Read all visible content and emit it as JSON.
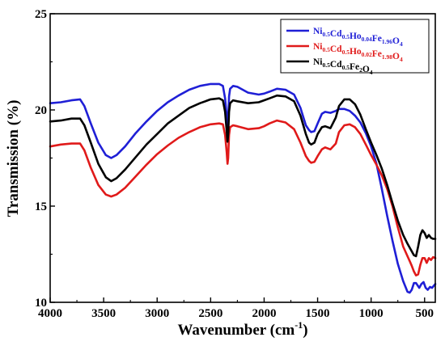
{
  "chart_data": {
    "type": "line",
    "title": "",
    "xlabel_main": "Wavenumber (cm",
    "xlabel_sup": "-1",
    "xlabel_close": ")",
    "ylabel": "Transmission (%)",
    "xlim": [
      4000,
      400
    ],
    "ylim": [
      10,
      25
    ],
    "x_reversed": true,
    "x_ticks": [
      4000,
      3500,
      3000,
      2500,
      2000,
      1500,
      1000,
      500
    ],
    "y_ticks": [
      10,
      15,
      20,
      25
    ],
    "grid": false,
    "legend_position": "top-right",
    "series": [
      {
        "legend": [
          {
            "t": "Ni",
            "s": "0.5"
          },
          {
            "t": "Cd",
            "s": "0.5"
          },
          {
            "t": "Ho",
            "s": "0.04"
          },
          {
            "t": "Fe",
            "s": "1.96"
          },
          {
            "t": "O",
            "s": "4"
          }
        ],
        "color": "#1f1fd6",
        "points": [
          [
            4000,
            20.35
          ],
          [
            3900,
            20.4
          ],
          [
            3800,
            20.5
          ],
          [
            3720,
            20.55
          ],
          [
            3680,
            20.2
          ],
          [
            3620,
            19.3
          ],
          [
            3550,
            18.3
          ],
          [
            3480,
            17.65
          ],
          [
            3430,
            17.5
          ],
          [
            3380,
            17.65
          ],
          [
            3300,
            18.1
          ],
          [
            3200,
            18.8
          ],
          [
            3100,
            19.4
          ],
          [
            3000,
            19.95
          ],
          [
            2900,
            20.4
          ],
          [
            2800,
            20.75
          ],
          [
            2700,
            21.05
          ],
          [
            2600,
            21.25
          ],
          [
            2500,
            21.35
          ],
          [
            2420,
            21.35
          ],
          [
            2385,
            21.25
          ],
          [
            2365,
            20.6
          ],
          [
            2350,
            19.7
          ],
          [
            2342,
            19.1
          ],
          [
            2336,
            19.45
          ],
          [
            2328,
            20.7
          ],
          [
            2318,
            21.1
          ],
          [
            2290,
            21.25
          ],
          [
            2250,
            21.2
          ],
          [
            2150,
            20.9
          ],
          [
            2050,
            20.8
          ],
          [
            2000,
            20.85
          ],
          [
            1950,
            20.95
          ],
          [
            1880,
            21.1
          ],
          [
            1800,
            21.05
          ],
          [
            1720,
            20.8
          ],
          [
            1660,
            20.1
          ],
          [
            1610,
            19.2
          ],
          [
            1580,
            18.95
          ],
          [
            1560,
            18.85
          ],
          [
            1530,
            18.9
          ],
          [
            1500,
            19.3
          ],
          [
            1460,
            19.8
          ],
          [
            1430,
            19.9
          ],
          [
            1380,
            19.85
          ],
          [
            1330,
            19.95
          ],
          [
            1300,
            20.05
          ],
          [
            1250,
            20.05
          ],
          [
            1200,
            19.95
          ],
          [
            1150,
            19.7
          ],
          [
            1100,
            19.35
          ],
          [
            1050,
            18.8
          ],
          [
            1000,
            18.1
          ],
          [
            950,
            17.2
          ],
          [
            900,
            15.9
          ],
          [
            850,
            14.5
          ],
          [
            800,
            13.2
          ],
          [
            750,
            12.0
          ],
          [
            700,
            11.1
          ],
          [
            660,
            10.55
          ],
          [
            640,
            10.5
          ],
          [
            620,
            10.65
          ],
          [
            600,
            11.0
          ],
          [
            580,
            11.0
          ],
          [
            550,
            10.75
          ],
          [
            530,
            10.95
          ],
          [
            510,
            11.05
          ],
          [
            490,
            10.75
          ],
          [
            470,
            10.65
          ],
          [
            450,
            10.8
          ],
          [
            430,
            10.75
          ],
          [
            400,
            10.95
          ]
        ]
      },
      {
        "legend": [
          {
            "t": "Ni",
            "s": "0.5"
          },
          {
            "t": "Cd",
            "s": "0.5"
          },
          {
            "t": "Ho",
            "s": "0.02"
          },
          {
            "t": "Fe",
            "s": "1.98"
          },
          {
            "t": "O",
            "s": "4"
          }
        ],
        "color": "#e01a1a",
        "points": [
          [
            4000,
            18.1
          ],
          [
            3900,
            18.2
          ],
          [
            3800,
            18.25
          ],
          [
            3720,
            18.25
          ],
          [
            3680,
            17.9
          ],
          [
            3620,
            17.0
          ],
          [
            3550,
            16.1
          ],
          [
            3480,
            15.6
          ],
          [
            3430,
            15.5
          ],
          [
            3380,
            15.6
          ],
          [
            3300,
            15.95
          ],
          [
            3200,
            16.55
          ],
          [
            3100,
            17.15
          ],
          [
            3000,
            17.7
          ],
          [
            2900,
            18.15
          ],
          [
            2800,
            18.55
          ],
          [
            2700,
            18.85
          ],
          [
            2600,
            19.1
          ],
          [
            2500,
            19.25
          ],
          [
            2420,
            19.3
          ],
          [
            2385,
            19.25
          ],
          [
            2365,
            18.7
          ],
          [
            2350,
            17.8
          ],
          [
            2342,
            17.2
          ],
          [
            2336,
            17.5
          ],
          [
            2328,
            18.7
          ],
          [
            2318,
            19.1
          ],
          [
            2290,
            19.2
          ],
          [
            2250,
            19.15
          ],
          [
            2150,
            19.0
          ],
          [
            2050,
            19.05
          ],
          [
            2000,
            19.15
          ],
          [
            1950,
            19.3
          ],
          [
            1880,
            19.45
          ],
          [
            1800,
            19.35
          ],
          [
            1720,
            19.0
          ],
          [
            1660,
            18.3
          ],
          [
            1610,
            17.6
          ],
          [
            1580,
            17.35
          ],
          [
            1560,
            17.25
          ],
          [
            1530,
            17.3
          ],
          [
            1500,
            17.6
          ],
          [
            1460,
            17.95
          ],
          [
            1430,
            18.05
          ],
          [
            1380,
            17.95
          ],
          [
            1330,
            18.25
          ],
          [
            1300,
            18.85
          ],
          [
            1250,
            19.2
          ],
          [
            1200,
            19.25
          ],
          [
            1150,
            19.1
          ],
          [
            1100,
            18.75
          ],
          [
            1050,
            18.2
          ],
          [
            1000,
            17.65
          ],
          [
            950,
            17.15
          ],
          [
            900,
            16.6
          ],
          [
            850,
            15.9
          ],
          [
            800,
            15.0
          ],
          [
            750,
            13.9
          ],
          [
            700,
            12.9
          ],
          [
            660,
            12.4
          ],
          [
            640,
            12.15
          ],
          [
            620,
            11.9
          ],
          [
            600,
            11.6
          ],
          [
            580,
            11.4
          ],
          [
            560,
            11.45
          ],
          [
            540,
            11.95
          ],
          [
            520,
            12.3
          ],
          [
            500,
            12.3
          ],
          [
            480,
            12.05
          ],
          [
            460,
            12.3
          ],
          [
            440,
            12.2
          ],
          [
            420,
            12.35
          ],
          [
            400,
            12.3
          ]
        ]
      },
      {
        "legend": [
          {
            "t": "Ni",
            "s": "0.5"
          },
          {
            "t": "Cd",
            "s": "0.5"
          },
          {
            "t": "Fe",
            "s": "2"
          },
          {
            "t": "O",
            "s": "4"
          }
        ],
        "color": "#000000",
        "points": [
          [
            4000,
            19.4
          ],
          [
            3900,
            19.45
          ],
          [
            3800,
            19.55
          ],
          [
            3720,
            19.55
          ],
          [
            3680,
            19.2
          ],
          [
            3620,
            18.3
          ],
          [
            3550,
            17.2
          ],
          [
            3480,
            16.5
          ],
          [
            3430,
            16.3
          ],
          [
            3380,
            16.45
          ],
          [
            3300,
            16.9
          ],
          [
            3200,
            17.55
          ],
          [
            3100,
            18.2
          ],
          [
            3000,
            18.75
          ],
          [
            2900,
            19.3
          ],
          [
            2800,
            19.7
          ],
          [
            2700,
            20.1
          ],
          [
            2600,
            20.35
          ],
          [
            2500,
            20.55
          ],
          [
            2420,
            20.6
          ],
          [
            2385,
            20.5
          ],
          [
            2365,
            19.9
          ],
          [
            2350,
            18.9
          ],
          [
            2342,
            18.35
          ],
          [
            2336,
            18.7
          ],
          [
            2328,
            19.9
          ],
          [
            2318,
            20.35
          ],
          [
            2290,
            20.5
          ],
          [
            2250,
            20.45
          ],
          [
            2150,
            20.35
          ],
          [
            2050,
            20.4
          ],
          [
            2000,
            20.5
          ],
          [
            1950,
            20.6
          ],
          [
            1880,
            20.75
          ],
          [
            1800,
            20.7
          ],
          [
            1720,
            20.45
          ],
          [
            1660,
            19.7
          ],
          [
            1610,
            18.75
          ],
          [
            1580,
            18.3
          ],
          [
            1560,
            18.2
          ],
          [
            1530,
            18.3
          ],
          [
            1500,
            18.75
          ],
          [
            1460,
            19.1
          ],
          [
            1430,
            19.15
          ],
          [
            1380,
            19.05
          ],
          [
            1330,
            19.6
          ],
          [
            1300,
            20.2
          ],
          [
            1250,
            20.55
          ],
          [
            1200,
            20.55
          ],
          [
            1150,
            20.3
          ],
          [
            1100,
            19.75
          ],
          [
            1050,
            19.0
          ],
          [
            1000,
            18.3
          ],
          [
            950,
            17.65
          ],
          [
            900,
            16.95
          ],
          [
            850,
            16.1
          ],
          [
            800,
            15.15
          ],
          [
            750,
            14.25
          ],
          [
            700,
            13.5
          ],
          [
            660,
            13.05
          ],
          [
            640,
            12.85
          ],
          [
            620,
            12.65
          ],
          [
            600,
            12.45
          ],
          [
            580,
            12.4
          ],
          [
            560,
            12.9
          ],
          [
            540,
            13.5
          ],
          [
            520,
            13.75
          ],
          [
            500,
            13.6
          ],
          [
            480,
            13.35
          ],
          [
            460,
            13.5
          ],
          [
            440,
            13.35
          ],
          [
            420,
            13.3
          ],
          [
            400,
            13.3
          ]
        ]
      }
    ]
  }
}
